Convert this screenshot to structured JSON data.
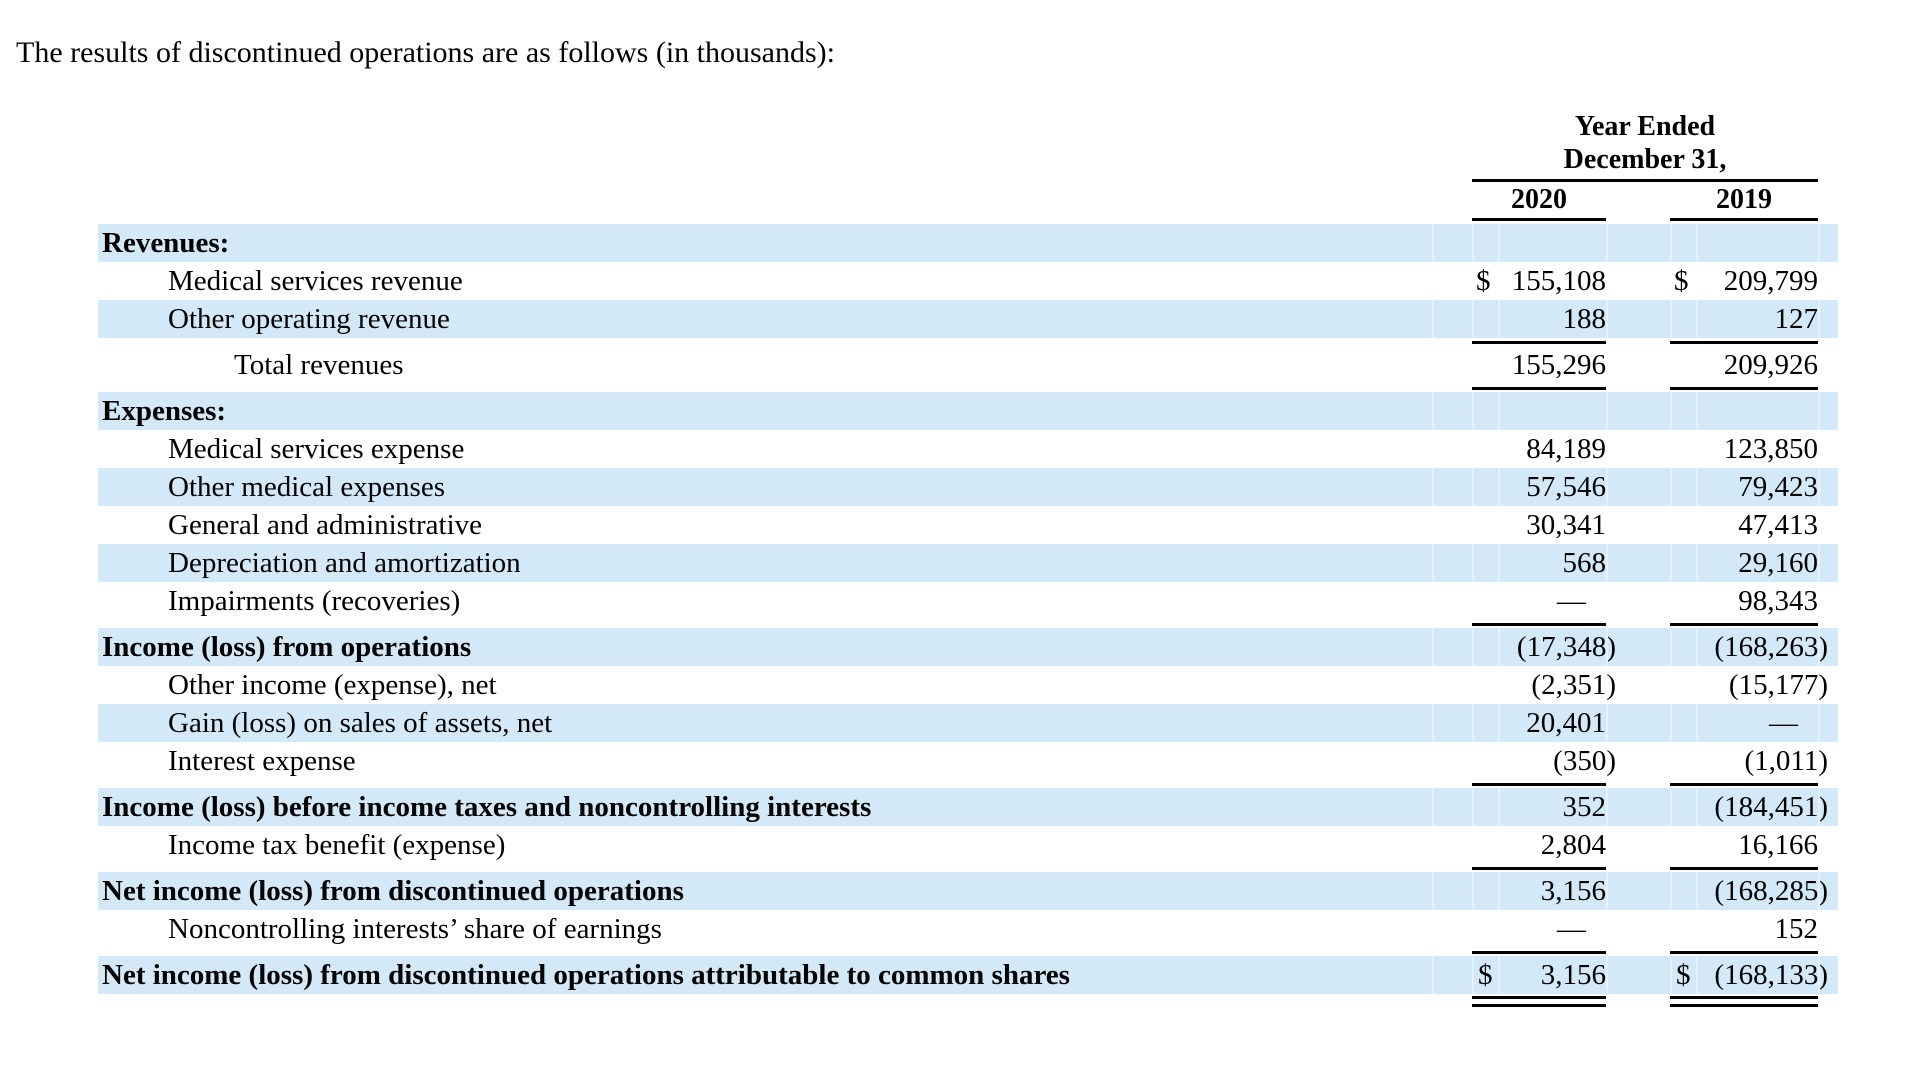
{
  "document": {
    "intro_text": "The results of discontinued operations are as follows (in thousands):"
  },
  "table": {
    "header": {
      "period_line1": "Year Ended",
      "period_line2": "December 31,",
      "columns": [
        "2020",
        "2019"
      ]
    },
    "colors": {
      "stripe": "#d3e9f7",
      "separator": "#e6f3fc",
      "rule": "#000000",
      "text": "#000000"
    },
    "rows": [
      {
        "label": "Revenues:",
        "indent": 0,
        "bold": true,
        "shaded": true,
        "d20": "",
        "v20": "",
        "d19": "",
        "v19": "",
        "rule": "none"
      },
      {
        "label": "Medical services revenue",
        "indent": 1,
        "bold": false,
        "shaded": false,
        "d20": "$",
        "v20": "155,108",
        "d19": "$",
        "v19": "209,799",
        "rule": "none"
      },
      {
        "label": "Other operating revenue",
        "indent": 1,
        "bold": false,
        "shaded": true,
        "d20": "",
        "v20": "188",
        "d19": "",
        "v19": "127",
        "rule": "single"
      },
      {
        "label": "Total revenues",
        "indent": 2,
        "bold": false,
        "shaded": false,
        "d20": "",
        "v20": "155,296",
        "d19": "",
        "v19": "209,926",
        "rule": "single"
      },
      {
        "label": "Expenses:",
        "indent": 0,
        "bold": true,
        "shaded": true,
        "d20": "",
        "v20": "",
        "d19": "",
        "v19": "",
        "rule": "none"
      },
      {
        "label": "Medical services expense",
        "indent": 1,
        "bold": false,
        "shaded": false,
        "d20": "",
        "v20": "84,189",
        "d19": "",
        "v19": "123,850",
        "rule": "none"
      },
      {
        "label": "Other medical expenses",
        "indent": 1,
        "bold": false,
        "shaded": true,
        "d20": "",
        "v20": "57,546",
        "d19": "",
        "v19": "79,423",
        "rule": "none"
      },
      {
        "label": "General and administrative",
        "indent": 1,
        "bold": false,
        "shaded": false,
        "d20": "",
        "v20": "30,341",
        "d19": "",
        "v19": "47,413",
        "rule": "none"
      },
      {
        "label": "Depreciation and amortization",
        "indent": 1,
        "bold": false,
        "shaded": true,
        "d20": "",
        "v20": "568",
        "d19": "",
        "v19": "29,160",
        "rule": "none"
      },
      {
        "label": "Impairments (recoveries)",
        "indent": 1,
        "bold": false,
        "shaded": false,
        "d20": "",
        "v20": "—",
        "d19": "",
        "v19": "98,343",
        "rule": "single"
      },
      {
        "label": "Income (loss) from operations",
        "indent": 0,
        "bold": true,
        "shaded": true,
        "d20": "",
        "v20": "(17,348)",
        "d19": "",
        "v19": "(168,263)",
        "rule": "none"
      },
      {
        "label": "Other income (expense), net",
        "indent": 1,
        "bold": false,
        "shaded": false,
        "d20": "",
        "v20": "(2,351)",
        "d19": "",
        "v19": "(15,177)",
        "rule": "none"
      },
      {
        "label": "Gain (loss) on sales of assets, net",
        "indent": 1,
        "bold": false,
        "shaded": true,
        "d20": "",
        "v20": "20,401",
        "d19": "",
        "v19": "—",
        "rule": "none"
      },
      {
        "label": "Interest expense",
        "indent": 1,
        "bold": false,
        "shaded": false,
        "d20": "",
        "v20": "(350)",
        "d19": "",
        "v19": "(1,011)",
        "rule": "single"
      },
      {
        "label": "Income (loss) before income taxes and noncontrolling interests",
        "indent": 0,
        "bold": true,
        "shaded": true,
        "d20": "",
        "v20": "352",
        "d19": "",
        "v19": "(184,451)",
        "rule": "none"
      },
      {
        "label": "Income tax benefit (expense)",
        "indent": 1,
        "bold": false,
        "shaded": false,
        "d20": "",
        "v20": "2,804",
        "d19": "",
        "v19": "16,166",
        "rule": "single"
      },
      {
        "label": "Net income (loss) from discontinued operations",
        "indent": 0,
        "bold": true,
        "shaded": true,
        "d20": "",
        "v20": "3,156",
        "d19": "",
        "v19": "(168,285)",
        "rule": "none"
      },
      {
        "label": "Noncontrolling interests’ share of earnings",
        "indent": 1,
        "bold": false,
        "shaded": false,
        "d20": "",
        "v20": "—",
        "d19": "",
        "v19": "152",
        "rule": "single"
      },
      {
        "label": "Net income (loss) from discontinued operations attributable to common shares",
        "indent": 0,
        "bold": true,
        "shaded": true,
        "d20": "$",
        "v20": "3,156",
        "d19": "$",
        "v19": "(168,133)",
        "rule": "double"
      }
    ]
  }
}
